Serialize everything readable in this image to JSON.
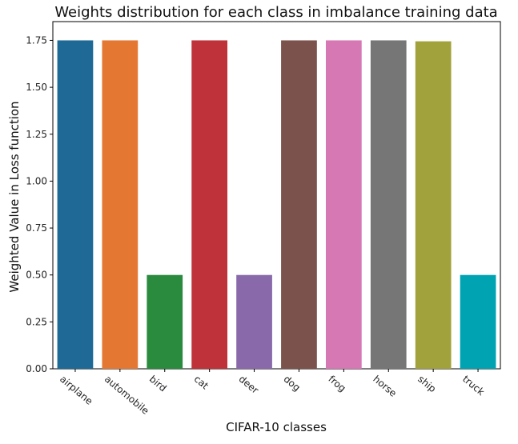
{
  "chart_data": {
    "type": "bar",
    "title": "Weights distribution for each class in imbalance training data",
    "xlabel": "CIFAR-10 classes",
    "ylabel": "Weighted Value in Loss function",
    "categories": [
      "airplane",
      "automobile",
      "bird",
      "cat",
      "deer",
      "dog",
      "frog",
      "horse",
      "ship",
      "truck"
    ],
    "values": [
      1.75,
      1.75,
      0.5,
      1.75,
      0.5,
      1.75,
      1.75,
      1.75,
      1.745,
      0.5
    ],
    "colors": [
      "#1f6996",
      "#e47833",
      "#2a8a3e",
      "#bf3239",
      "#8a69aa",
      "#7c524c",
      "#d678b4",
      "#767676",
      "#a1a23b",
      "#00a3b1"
    ],
    "ylim": [
      0,
      1.85
    ],
    "yticks": [
      "0.00",
      "0.25",
      "0.50",
      "0.75",
      "1.00",
      "1.25",
      "1.50",
      "1.75"
    ],
    "grid": false,
    "legend": "none"
  }
}
